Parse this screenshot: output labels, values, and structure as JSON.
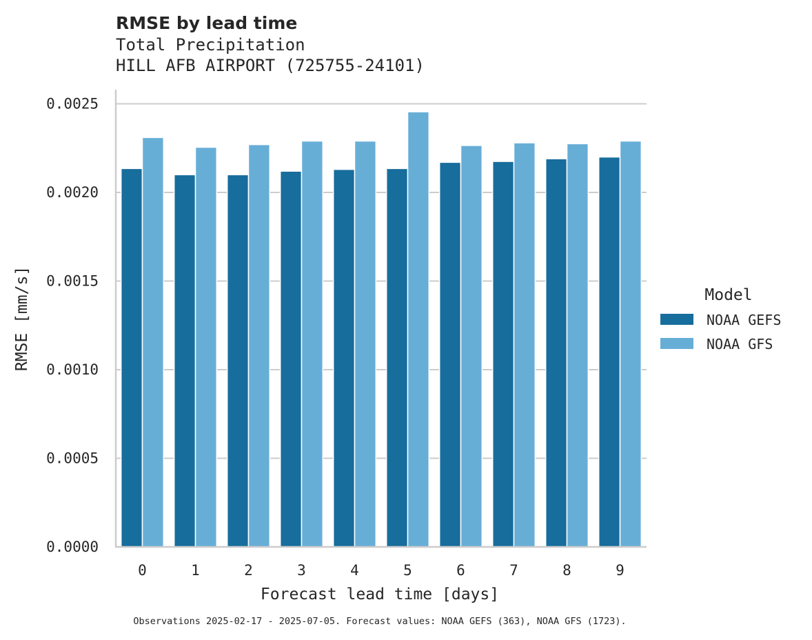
{
  "chart_data": {
    "type": "bar",
    "title": "RMSE by lead time",
    "subtitle_lines": [
      "Total Precipitation",
      "HILL AFB AIRPORT (725755-24101)"
    ],
    "xlabel": "Forecast lead time [days]",
    "ylabel": "RMSE [mm/s]",
    "categories": [
      "0",
      "1",
      "2",
      "3",
      "4",
      "5",
      "6",
      "7",
      "8",
      "9"
    ],
    "ylim": [
      0,
      0.00258
    ],
    "yticks": [
      0.0,
      0.0005,
      0.001,
      0.0015,
      0.002,
      0.0025
    ],
    "ytick_labels": [
      "0.0000",
      "0.0005",
      "0.0010",
      "0.0015",
      "0.0020",
      "0.0025"
    ],
    "grid": "horizontal",
    "legend": {
      "title": "Model",
      "placement": "right"
    },
    "series": [
      {
        "name": "NOAA GEFS",
        "color": "#176d9c",
        "values": [
          0.002135,
          0.0021,
          0.0021,
          0.00212,
          0.00213,
          0.002135,
          0.00217,
          0.002175,
          0.00219,
          0.0022
        ]
      },
      {
        "name": "NOAA GFS",
        "color": "#67aed7",
        "values": [
          0.00231,
          0.002255,
          0.00227,
          0.00229,
          0.00229,
          0.002455,
          0.002265,
          0.00228,
          0.002275,
          0.00229
        ]
      }
    ],
    "footnote": "Observations 2025-02-17 - 2025-07-05. Forecast values: NOAA GEFS (363), NOAA GFS (1723)."
  }
}
